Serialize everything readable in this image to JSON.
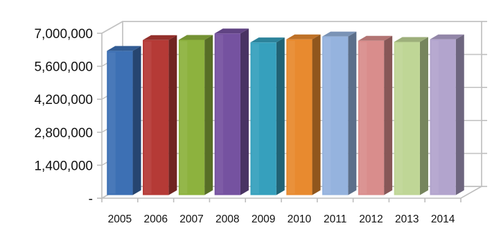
{
  "chart_data": {
    "type": "bar",
    "style": "3d-column",
    "categories": [
      "2005",
      "2006",
      "2007",
      "2008",
      "2009",
      "2010",
      "2011",
      "2012",
      "2013",
      "2014"
    ],
    "values": [
      6120000,
      6580000,
      6590000,
      6860000,
      6480000,
      6610000,
      6730000,
      6550000,
      6500000,
      6610000
    ],
    "colors": [
      "#3d70b4",
      "#b53a36",
      "#8db23e",
      "#7552a0",
      "#36a0bd",
      "#e88a2f",
      "#95b3de",
      "#d98d8c",
      "#bfd696",
      "#b2a4cd"
    ],
    "title": "",
    "xlabel": "",
    "ylabel": "",
    "ylim": [
      0,
      7000000
    ],
    "yticks": [
      0,
      1400000,
      2800000,
      4200000,
      5600000,
      7000000
    ],
    "ytick_labels": [
      "-",
      "1,400,000",
      "2,800,000",
      "4,200,000",
      "5,600,000",
      "7,000,000"
    ],
    "grid": true,
    "legend": "none"
  }
}
